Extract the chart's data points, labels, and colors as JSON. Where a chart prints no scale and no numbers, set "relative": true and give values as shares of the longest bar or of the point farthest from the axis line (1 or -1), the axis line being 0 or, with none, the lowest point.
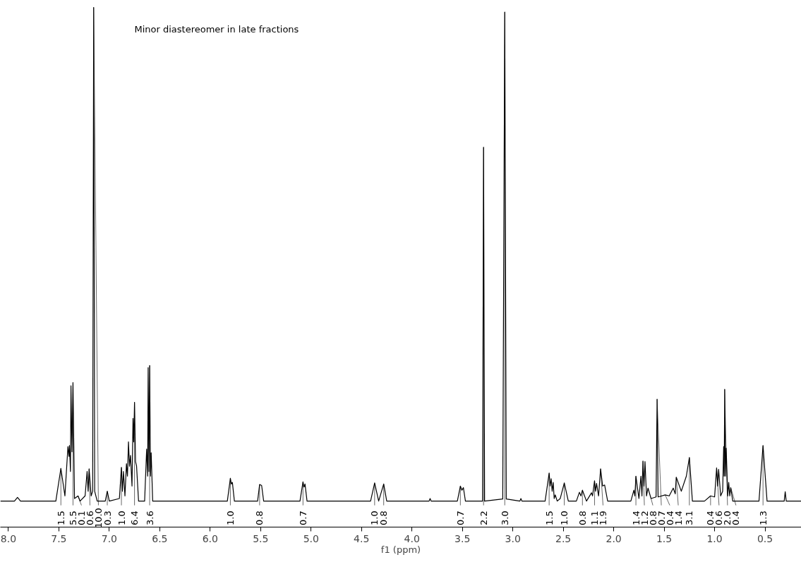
{
  "chart_data": {
    "type": "line",
    "relative": true,
    "xlabel": "f1 (ppm)",
    "xlim": [
      8.08,
      0.14
    ],
    "xticks": [
      {
        "value": 8.0,
        "label": "8.0"
      },
      {
        "value": 7.5,
        "label": "7.5"
      },
      {
        "value": 7.0,
        "label": "7.0"
      },
      {
        "value": 6.5,
        "label": "6.5"
      },
      {
        "value": 6.0,
        "label": "6.0"
      },
      {
        "value": 5.5,
        "label": "5.5"
      },
      {
        "value": 5.0,
        "label": "5.0"
      },
      {
        "value": 4.5,
        "label": "4.5"
      },
      {
        "value": 4.0,
        "label": "4.0"
      },
      {
        "value": 3.5,
        "label": "3.5"
      },
      {
        "value": 3.0,
        "label": "3.0"
      },
      {
        "value": 2.5,
        "label": "2.5"
      },
      {
        "value": 2.0,
        "label": "2.0"
      },
      {
        "value": 1.5,
        "label": "1.5"
      },
      {
        "value": 1.0,
        "label": "1.0"
      },
      {
        "value": 0.5,
        "label": "0.5"
      }
    ],
    "grid": false,
    "marker": "none",
    "line_style": "solid",
    "series": [
      {
        "color": "#000000",
        "x": [
          8.08,
          7.94,
          7.91,
          7.88,
          7.53,
          7.48,
          7.44,
          7.41,
          7.4,
          7.395,
          7.385,
          7.38,
          7.37,
          7.36,
          7.345,
          7.31,
          7.29,
          7.24,
          7.22,
          7.21,
          7.2,
          7.18,
          7.165,
          7.155,
          7.145,
          7.12,
          7.04,
          7.02,
          7.0,
          6.9,
          6.88,
          6.87,
          6.86,
          6.845,
          6.83,
          6.82,
          6.81,
          6.8,
          6.79,
          6.775,
          6.765,
          6.758,
          6.75,
          6.74,
          6.73,
          6.71,
          6.65,
          6.63,
          6.62,
          6.615,
          6.607,
          6.6,
          6.592,
          6.585,
          6.57,
          5.83,
          5.8,
          5.79,
          5.78,
          5.76,
          5.53,
          5.51,
          5.49,
          5.47,
          5.11,
          5.08,
          5.07,
          5.06,
          5.04,
          4.41,
          4.37,
          4.33,
          4.28,
          4.25,
          3.83,
          3.82,
          3.81,
          3.55,
          3.52,
          3.505,
          3.49,
          3.47,
          3.3,
          3.29,
          3.28,
          3.1,
          3.08,
          3.065,
          2.93,
          2.92,
          2.91,
          2.68,
          2.64,
          2.63,
          2.62,
          2.61,
          2.6,
          2.59,
          2.58,
          2.56,
          2.53,
          2.49,
          2.45,
          2.37,
          2.34,
          2.325,
          2.31,
          2.27,
          2.22,
          2.21,
          2.19,
          2.18,
          2.17,
          2.15,
          2.13,
          2.11,
          2.09,
          2.06,
          1.83,
          1.8,
          1.79,
          1.78,
          1.75,
          1.73,
          1.72,
          1.71,
          1.7,
          1.69,
          1.675,
          1.66,
          1.63,
          1.58,
          1.57,
          1.56,
          1.49,
          1.45,
          1.41,
          1.39,
          1.38,
          1.33,
          1.28,
          1.25,
          1.22,
          1.1,
          1.04,
          1.0,
          0.98,
          0.97,
          0.96,
          0.94,
          0.92,
          0.91,
          0.905,
          0.9,
          0.893,
          0.885,
          0.87,
          0.86,
          0.85,
          0.84,
          0.82,
          0.56,
          0.52,
          0.48,
          0.31,
          0.3,
          0.29,
          0.14
        ],
        "values": [
          0.05,
          0.05,
          0.057,
          0.05,
          0.05,
          0.113,
          0.06,
          0.155,
          0.136,
          0.157,
          0.107,
          0.272,
          0.145,
          0.278,
          0.055,
          0.06,
          0.05,
          0.06,
          0.107,
          0.069,
          0.112,
          0.06,
          0.069,
          1.0,
          0.069,
          0.05,
          0.05,
          0.069,
          0.05,
          0.055,
          0.115,
          0.069,
          0.107,
          0.06,
          0.122,
          0.098,
          0.164,
          0.117,
          0.138,
          0.079,
          0.209,
          0.164,
          0.24,
          0.126,
          0.118,
          0.05,
          0.05,
          0.15,
          0.098,
          0.307,
          0.107,
          0.311,
          0.098,
          0.143,
          0.05,
          0.05,
          0.094,
          0.083,
          0.086,
          0.05,
          0.05,
          0.082,
          0.08,
          0.05,
          0.05,
          0.087,
          0.077,
          0.083,
          0.05,
          0.05,
          0.085,
          0.05,
          0.083,
          0.05,
          0.05,
          0.055,
          0.05,
          0.05,
          0.079,
          0.071,
          0.076,
          0.05,
          0.05,
          0.731,
          0.05,
          0.054,
          0.991,
          0.054,
          0.05,
          0.055,
          0.05,
          0.05,
          0.104,
          0.079,
          0.093,
          0.069,
          0.086,
          0.055,
          0.062,
          0.05,
          0.055,
          0.085,
          0.05,
          0.05,
          0.067,
          0.06,
          0.071,
          0.05,
          0.066,
          0.06,
          0.089,
          0.069,
          0.084,
          0.06,
          0.112,
          0.079,
          0.081,
          0.05,
          0.05,
          0.071,
          0.06,
          0.098,
          0.055,
          0.098,
          0.06,
          0.127,
          0.079,
          0.126,
          0.06,
          0.075,
          0.055,
          0.058,
          0.246,
          0.058,
          0.062,
          0.06,
          0.075,
          0.064,
          0.096,
          0.069,
          0.098,
          0.134,
          0.05,
          0.05,
          0.06,
          0.058,
          0.114,
          0.079,
          0.111,
          0.06,
          0.069,
          0.155,
          0.098,
          0.265,
          0.098,
          0.152,
          0.06,
          0.086,
          0.06,
          0.076,
          0.05,
          0.05,
          0.157,
          0.05,
          0.05,
          0.068,
          0.05,
          0.05
        ]
      }
    ],
    "annotations": [
      "Minor diastereomer in late fractions",
      {
        "text": "1.5",
        "x": 7.48,
        "y": 0.113
      },
      {
        "text": "5.5",
        "x": 7.36,
        "y": 0.278
      },
      {
        "text": "0.1",
        "x": 7.31,
        "y": 0.06
      },
      {
        "text": "0.6",
        "x": 7.2,
        "y": 0.112
      },
      {
        "text": "10.0",
        "x": 7.155,
        "y": 1.0
      },
      {
        "text": "0.3",
        "x": 7.02,
        "y": 0.069
      },
      {
        "text": "1.0",
        "x": 6.88,
        "y": 0.115
      },
      {
        "text": "6.4",
        "x": 6.75,
        "y": 0.24
      },
      {
        "text": "3.6",
        "x": 6.6,
        "y": 0.311
      },
      {
        "text": "1.0",
        "x": 5.8,
        "y": 0.094
      },
      {
        "text": "0.8",
        "x": 5.51,
        "y": 0.082
      },
      {
        "text": "0.7",
        "x": 5.08,
        "y": 0.087
      },
      {
        "text": "1.0",
        "x": 4.37,
        "y": 0.085
      },
      {
        "text": "0.8",
        "x": 4.28,
        "y": 0.083
      },
      {
        "text": "0.7",
        "x": 3.52,
        "y": 0.079
      },
      {
        "text": "2.2",
        "x": 3.29,
        "y": 0.731
      },
      {
        "text": "3.0",
        "x": 3.08,
        "y": 0.991
      },
      {
        "text": "1.5",
        "x": 2.64,
        "y": 0.104
      },
      {
        "text": "1.0",
        "x": 2.49,
        "y": 0.085
      },
      {
        "text": "0.8",
        "x": 2.31,
        "y": 0.071
      },
      {
        "text": "1.1",
        "x": 2.19,
        "y": 0.089
      },
      {
        "text": "1.9",
        "x": 2.13,
        "y": 0.112
      },
      {
        "text": "1.4",
        "x": 1.78,
        "y": 0.098
      },
      {
        "text": "1.2",
        "x": 1.71,
        "y": 0.127
      },
      {
        "text": "0.8",
        "x": 1.63,
        "y": 0.055
      },
      {
        "text": "0.7",
        "x": 1.57,
        "y": 0.246
      },
      {
        "text": "0.4",
        "x": 1.49,
        "y": 0.062
      },
      {
        "text": "1.4",
        "x": 1.38,
        "y": 0.096
      },
      {
        "text": "3.1",
        "x": 1.25,
        "y": 0.134
      },
      {
        "text": "0.4",
        "x": 1.04,
        "y": 0.06
      },
      {
        "text": "0.6",
        "x": 0.98,
        "y": 0.114
      },
      {
        "text": "2.0",
        "x": 0.9,
        "y": 0.265
      },
      {
        "text": "0.4",
        "x": 0.84,
        "y": 0.076
      },
      {
        "text": "1.3",
        "x": 0.52,
        "y": 0.157
      }
    ]
  }
}
